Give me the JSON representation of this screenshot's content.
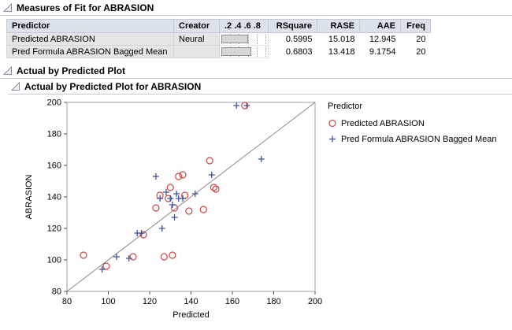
{
  "report": {
    "measures_title": "Measures of Fit for ABRASION",
    "plot_section_title": "Actual by Predicted Plot",
    "plot_title": "Actual by Predicted Plot for ABRASION"
  },
  "fit_table": {
    "headers": {
      "predictor": "Predictor",
      "creator": "Creator",
      "rsquare_scale": ".2 .4 .6 .8",
      "rsquare": "RSquare",
      "rase": "RASE",
      "aae": "AAE",
      "freq": "Freq"
    },
    "rows": [
      {
        "predictor": "Predicted ABRASION",
        "creator": "Neural",
        "rsquare_value": 0.5995,
        "rsquare": "0.5995",
        "rase": "15.018",
        "aae": "12.945",
        "freq": "20"
      },
      {
        "predictor": "Pred Formula ABRASION Bagged Mean",
        "creator": "",
        "rsquare_value": 0.6803,
        "rsquare": "0.6803",
        "rase": "13.418",
        "aae": "9.1754",
        "freq": "20"
      }
    ]
  },
  "chart_data": {
    "type": "scatter",
    "title": "Actual by Predicted Plot for ABRASION",
    "xlabel": "Predicted",
    "ylabel": "ABRASION",
    "xlim": [
      80,
      200
    ],
    "ylim": [
      80,
      200
    ],
    "xticks": [
      80,
      100,
      120,
      140,
      160,
      180,
      200
    ],
    "yticks": [
      80,
      100,
      120,
      140,
      160,
      180,
      200
    ],
    "grid": false,
    "identity_line": true,
    "legend_position": "right",
    "legend_title": "Predictor",
    "series": [
      {
        "name": "Predicted ABRASION",
        "marker": "circle",
        "color": "#cf4747",
        "points": [
          [
            88,
            103
          ],
          [
            99,
            96
          ],
          [
            112,
            102
          ],
          [
            117,
            116
          ],
          [
            123,
            133
          ],
          [
            125,
            141
          ],
          [
            127,
            102
          ],
          [
            129,
            139
          ],
          [
            130,
            146
          ],
          [
            131,
            103
          ],
          [
            132,
            133
          ],
          [
            134,
            153
          ],
          [
            136,
            154
          ],
          [
            137,
            141
          ],
          [
            139,
            131
          ],
          [
            146,
            132
          ],
          [
            149,
            163
          ],
          [
            151,
            146
          ],
          [
            152,
            145
          ],
          [
            166,
            198
          ]
        ]
      },
      {
        "name": "Pred Formula ABRASION Bagged Mean",
        "marker": "plus",
        "color": "#3f51a3",
        "points": [
          [
            97,
            94
          ],
          [
            104,
            102
          ],
          [
            110,
            101
          ],
          [
            114,
            117
          ],
          [
            116,
            117
          ],
          [
            123,
            153
          ],
          [
            125,
            139
          ],
          [
            126,
            120
          ],
          [
            128,
            143
          ],
          [
            130,
            139
          ],
          [
            131,
            135
          ],
          [
            132,
            127
          ],
          [
            133,
            142
          ],
          [
            134,
            139
          ],
          [
            136,
            139
          ],
          [
            142,
            142
          ],
          [
            150,
            154
          ],
          [
            162,
            198
          ],
          [
            167,
            198
          ],
          [
            174,
            164
          ]
        ]
      }
    ]
  }
}
